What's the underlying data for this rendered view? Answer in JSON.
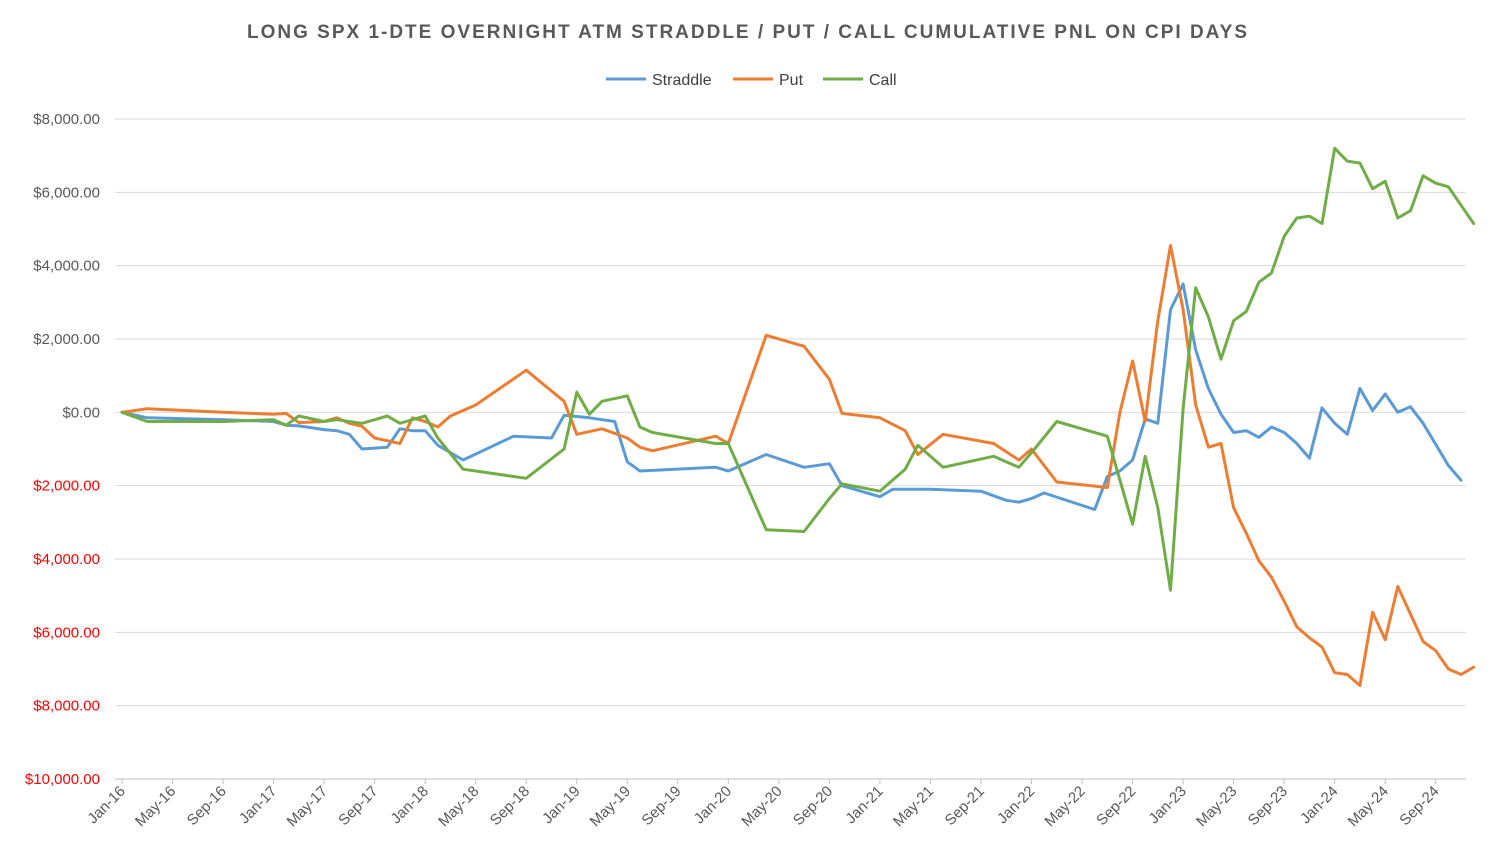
{
  "chart_data": {
    "type": "line",
    "title": "LONG SPX 1-DTE OVERNIGHT ATM STRADDLE / PUT / CALL CUMULATIVE PNL ON CPI DAYS",
    "xlabel": "",
    "ylabel": "",
    "ylim": [
      -10000,
      8000
    ],
    "y_ticks": [
      8000,
      6000,
      4000,
      2000,
      0,
      -2000,
      -4000,
      -6000,
      -8000,
      -10000
    ],
    "y_tick_labels": [
      "$8,000.00",
      "$6,000.00",
      "$4,000.00",
      "$2,000.00",
      "$0.00",
      "$2,000.00",
      "$4,000.00",
      "$6,000.00",
      "$8,000.00",
      "$10,000.00"
    ],
    "x_tick_labels": [
      "Jan-16",
      "May-16",
      "Sep-16",
      "Jan-17",
      "May-17",
      "Sep-17",
      "Jan-18",
      "May-18",
      "Sep-18",
      "Jan-19",
      "May-19",
      "Sep-19",
      "Jan-20",
      "May-20",
      "Sep-20",
      "Jan-21",
      "May-21",
      "Sep-21",
      "Jan-22",
      "May-22",
      "Sep-22",
      "Jan-23",
      "May-23",
      "Sep-23",
      "Jan-24",
      "May-24",
      "Sep-24"
    ],
    "x_range": [
      "Jan-16",
      "Nov-24"
    ],
    "grid": "horizontal",
    "legend_position": "top",
    "colors": {
      "Straddle": "#5b9bd5",
      "Put": "#ed7d31",
      "Call": "#70ad47",
      "positive_tick": "#595959",
      "negative_tick": "#ff0000",
      "grid": "#d9d9d9",
      "axis": "#bfbfbf"
    },
    "series": [
      {
        "name": "Straddle",
        "color": "#5b9bd5",
        "points": [
          [
            "2016-01",
            0
          ],
          [
            "2016-03",
            -150
          ],
          [
            "2016-09",
            -200
          ],
          [
            "2017-01",
            -250
          ],
          [
            "2017-02",
            -350
          ],
          [
            "2017-03",
            -370
          ],
          [
            "2017-05",
            -470
          ],
          [
            "2017-06",
            -500
          ],
          [
            "2017-07",
            -600
          ],
          [
            "2017-08",
            -1000
          ],
          [
            "2017-10",
            -950
          ],
          [
            "2017-11",
            -450
          ],
          [
            "2017-12",
            -500
          ],
          [
            "2018-01",
            -500
          ],
          [
            "2018-02",
            -900
          ],
          [
            "2018-04",
            -1300
          ],
          [
            "2018-08",
            -650
          ],
          [
            "2018-11",
            -700
          ],
          [
            "2018-12",
            -80
          ],
          [
            "2019-02",
            -150
          ],
          [
            "2019-04",
            -250
          ],
          [
            "2019-05",
            -1350
          ],
          [
            "2019-06",
            -1600
          ],
          [
            "2019-12",
            -1500
          ],
          [
            "2020-01",
            -1600
          ],
          [
            "2020-04",
            -1150
          ],
          [
            "2020-07",
            -1500
          ],
          [
            "2020-09",
            -1400
          ],
          [
            "2020-10",
            -2000
          ],
          [
            "2021-01",
            -2300
          ],
          [
            "2021-02",
            -2100
          ],
          [
            "2021-05",
            -2100
          ],
          [
            "2021-09",
            -2150
          ],
          [
            "2021-11",
            -2400
          ],
          [
            "2021-12",
            -2450
          ],
          [
            "2022-01",
            -2350
          ],
          [
            "2022-02",
            -2200
          ],
          [
            "2022-06",
            -2650
          ],
          [
            "2022-07",
            -1750
          ],
          [
            "2022-08",
            -1600
          ],
          [
            "2022-09",
            -1300
          ],
          [
            "2022-10",
            -180
          ],
          [
            "2022-11",
            -300
          ],
          [
            "2022-12",
            2800
          ],
          [
            "2023-01",
            3500
          ],
          [
            "2023-02",
            1700
          ],
          [
            "2023-03",
            650
          ],
          [
            "2023-04",
            -50
          ],
          [
            "2023-05",
            -550
          ],
          [
            "2023-06",
            -500
          ],
          [
            "2023-07",
            -680
          ],
          [
            "2023-08",
            -400
          ],
          [
            "2023-09",
            -550
          ],
          [
            "2023-10",
            -850
          ],
          [
            "2023-11",
            -1250
          ],
          [
            "2023-12",
            120
          ],
          [
            "2024-01",
            -300
          ],
          [
            "2024-02",
            -600
          ],
          [
            "2024-03",
            650
          ],
          [
            "2024-04",
            50
          ],
          [
            "2024-05",
            500
          ],
          [
            "2024-06",
            0
          ],
          [
            "2024-07",
            150
          ],
          [
            "2024-08",
            -300
          ],
          [
            "2024-10",
            -1450
          ],
          [
            "2024-11",
            -1850
          ]
        ]
      },
      {
        "name": "Put",
        "color": "#ed7d31",
        "points": [
          [
            "2016-01",
            0
          ],
          [
            "2016-03",
            100
          ],
          [
            "2016-09",
            0
          ],
          [
            "2017-01",
            -50
          ],
          [
            "2017-02",
            -30
          ],
          [
            "2017-03",
            -280
          ],
          [
            "2017-05",
            -250
          ],
          [
            "2017-06",
            -150
          ],
          [
            "2017-07",
            -300
          ],
          [
            "2017-08",
            -380
          ],
          [
            "2017-09",
            -700
          ],
          [
            "2017-11",
            -850
          ],
          [
            "2017-12",
            -150
          ],
          [
            "2018-01",
            -250
          ],
          [
            "2018-02",
            -400
          ],
          [
            "2018-03",
            -100
          ],
          [
            "2018-05",
            200
          ],
          [
            "2018-09",
            1150
          ],
          [
            "2018-12",
            300
          ],
          [
            "2019-01",
            -600
          ],
          [
            "2019-03",
            -450
          ],
          [
            "2019-05",
            -700
          ],
          [
            "2019-06",
            -950
          ],
          [
            "2019-07",
            -1050
          ],
          [
            "2019-12",
            -650
          ],
          [
            "2020-01",
            -850
          ],
          [
            "2020-04",
            2100
          ],
          [
            "2020-07",
            1800
          ],
          [
            "2020-09",
            900
          ],
          [
            "2020-10",
            -30
          ],
          [
            "2021-01",
            -150
          ],
          [
            "2021-03",
            -500
          ],
          [
            "2021-04",
            -1150
          ],
          [
            "2021-06",
            -600
          ],
          [
            "2021-10",
            -850
          ],
          [
            "2021-12",
            -1300
          ],
          [
            "2022-01",
            -1000
          ],
          [
            "2022-03",
            -1900
          ],
          [
            "2022-07",
            -2050
          ],
          [
            "2022-08",
            0
          ],
          [
            "2022-09",
            1400
          ],
          [
            "2022-10",
            -250
          ],
          [
            "2022-11",
            2500
          ],
          [
            "2022-12",
            4550
          ],
          [
            "2023-01",
            2800
          ],
          [
            "2023-02",
            200
          ],
          [
            "2023-03",
            -950
          ],
          [
            "2023-04",
            -850
          ],
          [
            "2023-05",
            -2600
          ],
          [
            "2023-06",
            -3300
          ],
          [
            "2023-07",
            -4050
          ],
          [
            "2023-08",
            -4500
          ],
          [
            "2023-09",
            -5150
          ],
          [
            "2023-10",
            -5850
          ],
          [
            "2023-11",
            -6150
          ],
          [
            "2023-12",
            -6400
          ],
          [
            "2024-01",
            -7100
          ],
          [
            "2024-02",
            -7150
          ],
          [
            "2024-03",
            -7450
          ],
          [
            "2024-04",
            -5450
          ],
          [
            "2024-05",
            -6200
          ],
          [
            "2024-06",
            -4750
          ],
          [
            "2024-08",
            -6250
          ],
          [
            "2024-09",
            -6500
          ],
          [
            "2024-10",
            -7000
          ],
          [
            "2024-11",
            -7150
          ],
          [
            "2024-12",
            -6950
          ]
        ]
      },
      {
        "name": "Call",
        "color": "#70ad47",
        "points": [
          [
            "2016-01",
            0
          ],
          [
            "2016-03",
            -250
          ],
          [
            "2016-09",
            -250
          ],
          [
            "2017-01",
            -200
          ],
          [
            "2017-02",
            -350
          ],
          [
            "2017-03",
            -100
          ],
          [
            "2017-05",
            -250
          ],
          [
            "2017-06",
            -200
          ],
          [
            "2017-08",
            -300
          ],
          [
            "2017-10",
            -100
          ],
          [
            "2017-11",
            -300
          ],
          [
            "2017-12",
            -200
          ],
          [
            "2018-01",
            -100
          ],
          [
            "2018-02",
            -700
          ],
          [
            "2018-04",
            -1550
          ],
          [
            "2018-09",
            -1800
          ],
          [
            "2018-12",
            -1000
          ],
          [
            "2019-01",
            550
          ],
          [
            "2019-02",
            -50
          ],
          [
            "2019-03",
            300
          ],
          [
            "2019-05",
            450
          ],
          [
            "2019-06",
            -400
          ],
          [
            "2019-07",
            -550
          ],
          [
            "2019-12",
            -850
          ],
          [
            "2020-01",
            -850
          ],
          [
            "2020-04",
            -3200
          ],
          [
            "2020-07",
            -3250
          ],
          [
            "2020-09",
            -2350
          ],
          [
            "2020-10",
            -1950
          ],
          [
            "2021-01",
            -2150
          ],
          [
            "2021-03",
            -1550
          ],
          [
            "2021-04",
            -900
          ],
          [
            "2021-06",
            -1500
          ],
          [
            "2021-10",
            -1200
          ],
          [
            "2021-12",
            -1500
          ],
          [
            "2022-01",
            -1100
          ],
          [
            "2022-03",
            -250
          ],
          [
            "2022-07",
            -650
          ],
          [
            "2022-09",
            -3050
          ],
          [
            "2022-10",
            -1200
          ],
          [
            "2022-11",
            -2600
          ],
          [
            "2022-12",
            -4850
          ],
          [
            "2023-01",
            100
          ],
          [
            "2023-02",
            3400
          ],
          [
            "2023-03",
            2600
          ],
          [
            "2023-04",
            1450
          ],
          [
            "2023-05",
            2500
          ],
          [
            "2023-06",
            2750
          ],
          [
            "2023-07",
            3550
          ],
          [
            "2023-08",
            3800
          ],
          [
            "2023-09",
            4800
          ],
          [
            "2023-10",
            5300
          ],
          [
            "2023-11",
            5350
          ],
          [
            "2023-12",
            5150
          ],
          [
            "2024-01",
            7200
          ],
          [
            "2024-02",
            6850
          ],
          [
            "2024-03",
            6800
          ],
          [
            "2024-04",
            6100
          ],
          [
            "2024-05",
            6300
          ],
          [
            "2024-06",
            5300
          ],
          [
            "2024-07",
            5500
          ],
          [
            "2024-08",
            6450
          ],
          [
            "2024-09",
            6250
          ],
          [
            "2024-10",
            6150
          ],
          [
            "2024-11",
            5650
          ],
          [
            "2024-12",
            5150
          ]
        ]
      }
    ]
  }
}
